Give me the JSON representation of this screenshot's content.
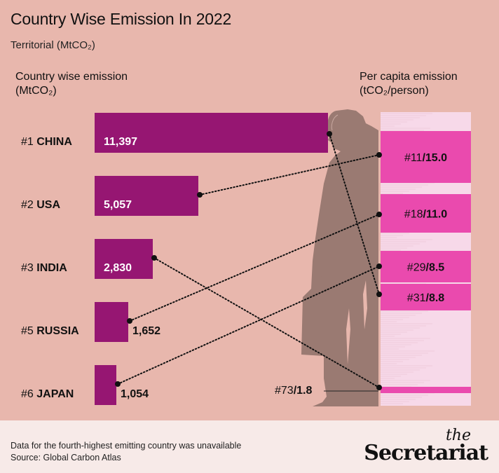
{
  "colors": {
    "background": "#e8b7ad",
    "bar": "#961672",
    "per_capita_block": "#ea4aae",
    "per_capita_stripe": "#f7d9e9",
    "silhouette": "#9a7a72",
    "footer_bg": "#f7eae8"
  },
  "chart_data": {
    "type": "bar",
    "title": "Country Wise Emission In 2022",
    "subtitle": "Territorial (MtCO₂)",
    "left_header": {
      "line1": "Country wise emission",
      "line2": "(MtCO₂)"
    },
    "right_header": {
      "line1": "Per capita emission",
      "line2": "(tCO₂/person)"
    },
    "categories": [
      "CHINA",
      "USA",
      "INDIA",
      "RUSSIA",
      "JAPAN"
    ],
    "ranks": [
      "#1",
      "#2",
      "#3",
      "#5",
      "#6"
    ],
    "values": [
      11397,
      5057,
      2830,
      1652,
      1054
    ],
    "value_labels": [
      "11,397",
      "5,057",
      "2,830",
      "1,652",
      "1,054"
    ],
    "per_capita": [
      {
        "country": "CHINA",
        "rank": "#31",
        "value": 8.8,
        "label": "8.8"
      },
      {
        "country": "USA",
        "rank": "#11",
        "value": 15.0,
        "label": "15.0"
      },
      {
        "country": "INDIA",
        "rank": "#73",
        "value": 1.8,
        "label": "1.8"
      },
      {
        "country": "RUSSIA",
        "rank": "#18",
        "value": 11.0,
        "label": "11.0"
      },
      {
        "country": "JAPAN",
        "rank": "#29",
        "value": 8.5,
        "label": "8.5"
      }
    ],
    "xlim": [
      0,
      11397
    ],
    "grid": false,
    "legend": "none"
  },
  "footer": {
    "note": "Data for the fourth-highest emitting country was unavailable",
    "source": "Source: Global Carbon Atlas",
    "logo_the": "the",
    "logo_main": "Secretariat"
  }
}
